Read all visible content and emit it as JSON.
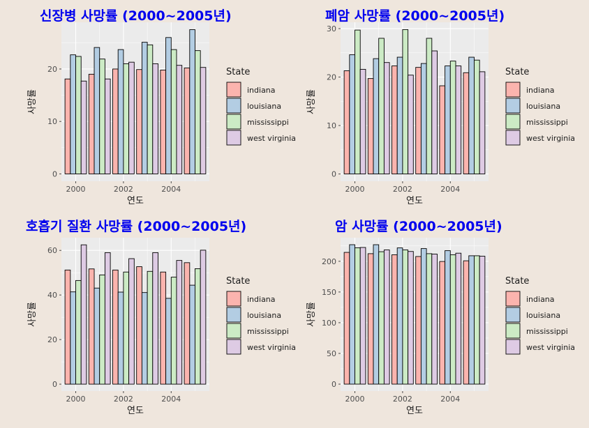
{
  "colors": {
    "indiana": "#fbb4ae",
    "louisiana": "#b3cde3",
    "mississippi": "#ccebc5",
    "west virginia": "#decbe4",
    "panel_bg": "#ebebeb",
    "page_bg": "#efe6dd",
    "title": "#0000ee"
  },
  "chart_data": [
    {
      "type": "bar",
      "title": "신장병 사망률 (2000~2005년)",
      "xlabel": "연도",
      "ylabel": "사망률",
      "legend_title": "State",
      "legend_position": "right",
      "x": [
        2000,
        2001,
        2002,
        2003,
        2004,
        2005
      ],
      "x_ticks": [
        2000,
        2002,
        2004
      ],
      "y_ticks": [
        0,
        10,
        20
      ],
      "ylim": [
        -1.4,
        28.9
      ],
      "series": [
        {
          "name": "indiana",
          "values": [
            18.1,
            19.0,
            20.0,
            19.9,
            19.8,
            20.2
          ]
        },
        {
          "name": "louisiana",
          "values": [
            22.7,
            24.1,
            23.7,
            25.1,
            26.0,
            27.5
          ]
        },
        {
          "name": "mississippi",
          "values": [
            22.4,
            21.9,
            21.0,
            24.6,
            23.7,
            23.5
          ]
        },
        {
          "name": "west virginia",
          "values": [
            17.7,
            18.1,
            21.3,
            21.0,
            20.7,
            20.3
          ]
        }
      ]
    },
    {
      "type": "bar",
      "title": "폐암 사망률 (2000~2005년)",
      "xlabel": "연도",
      "ylabel": "사망률",
      "legend_title": "State",
      "legend_position": "right",
      "x": [
        2000,
        2001,
        2002,
        2003,
        2004,
        2005
      ],
      "x_ticks": [
        2000,
        2002,
        2004
      ],
      "y_ticks": [
        0,
        10,
        20,
        30
      ],
      "ylim": [
        -1.5,
        31.3
      ],
      "series": [
        {
          "name": "indiana",
          "values": [
            21.3,
            19.7,
            22.3,
            22.0,
            18.2,
            20.9
          ]
        },
        {
          "name": "louisiana",
          "values": [
            24.6,
            23.8,
            24.1,
            22.8,
            22.3,
            24.1
          ]
        },
        {
          "name": "mississippi",
          "values": [
            29.7,
            28.0,
            29.8,
            28.0,
            23.3,
            23.5
          ]
        },
        {
          "name": "west virginia",
          "values": [
            21.6,
            23.0,
            20.4,
            25.4,
            22.3,
            21.1
          ]
        }
      ]
    },
    {
      "type": "bar",
      "title": "호흡기 질환 사망률 (2000~2005년)",
      "xlabel": "연도",
      "ylabel": "사망률",
      "legend_title": "State",
      "legend_position": "right",
      "x": [
        2000,
        2001,
        2002,
        2003,
        2004,
        2005
      ],
      "x_ticks": [
        2000,
        2002,
        2004
      ],
      "y_ticks": [
        0,
        20,
        40,
        60
      ],
      "ylim": [
        -3.1,
        65.7
      ],
      "series": [
        {
          "name": "indiana",
          "values": [
            51.2,
            51.7,
            51.2,
            52.7,
            50.3,
            54.5
          ]
        },
        {
          "name": "louisiana",
          "values": [
            41.4,
            43.1,
            41.3,
            41.1,
            38.5,
            44.4
          ]
        },
        {
          "name": "mississippi",
          "values": [
            46.5,
            49.0,
            50.3,
            50.6,
            48.0,
            51.8
          ]
        },
        {
          "name": "west virginia",
          "values": [
            62.5,
            59.0,
            56.3,
            59.0,
            55.5,
            60.1
          ]
        }
      ]
    },
    {
      "type": "bar",
      "title": "암 사망률 (2000~2005년)",
      "xlabel": "연도",
      "ylabel": "사망률",
      "legend_title": "State",
      "legend_position": "right",
      "x": [
        2000,
        2001,
        2002,
        2003,
        2004,
        2005
      ],
      "x_ticks": [
        2000,
        2002,
        2004
      ],
      "y_ticks": [
        0,
        50,
        100,
        150,
        200
      ],
      "ylim": [
        -11.3,
        238.4
      ],
      "series": [
        {
          "name": "indiana",
          "values": [
            214.5,
            212.4,
            210.6,
            207.8,
            199.7,
            200.8
          ]
        },
        {
          "name": "louisiana",
          "values": [
            227.0,
            227.0,
            221.8,
            220.7,
            217.3,
            209.0
          ]
        },
        {
          "name": "mississippi",
          "values": [
            222.0,
            215.6,
            218.5,
            212.4,
            210.6,
            209.0
          ]
        },
        {
          "name": "west virginia",
          "values": [
            222.5,
            218.5,
            216.0,
            211.7,
            213.2,
            208.3
          ]
        }
      ]
    }
  ]
}
